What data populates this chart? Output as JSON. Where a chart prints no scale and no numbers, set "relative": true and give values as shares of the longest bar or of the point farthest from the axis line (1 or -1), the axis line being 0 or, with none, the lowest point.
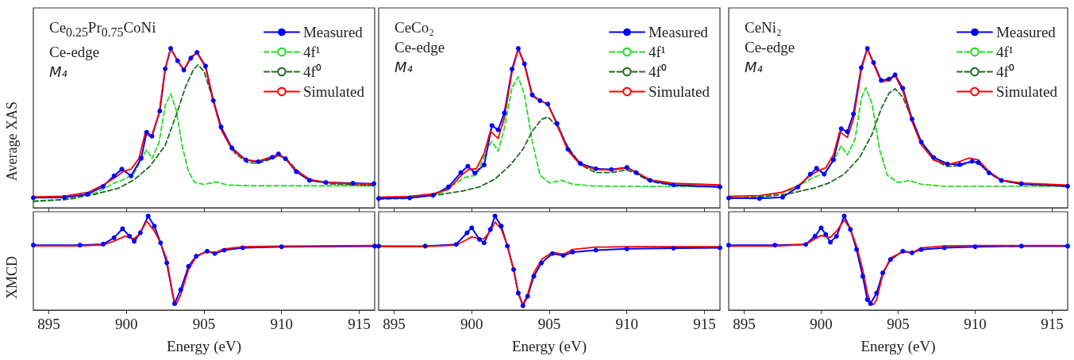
{
  "chart_data": [
    {
      "type": "line",
      "relative": true,
      "ylabel": "Average XAS",
      "xlim": [
        894,
        916
      ],
      "xticks": [
        895,
        900,
        905,
        910,
        915
      ],
      "tick_labels": false,
      "legend": "top right",
      "annotations": [
        "Ce$_{0.25}$Pr$_{0.75}$CoNi",
        "Ce-edge",
        "M₄"
      ],
      "series": [
        {
          "name": "Measured",
          "color": "#0000ff",
          "marker": "circle",
          "line_style": "solid",
          "x": [
            894,
            896,
            897.5,
            898.5,
            899.2,
            899.7,
            900.3,
            900.95,
            901.3,
            901.65,
            902.15,
            902.5,
            902.85,
            903.3,
            903.7,
            904.15,
            904.55,
            905.1,
            905.6,
            906.1,
            906.8,
            907.7,
            908.5,
            909.4,
            909.8,
            910.25,
            910.95,
            911.8,
            912.85,
            914.6,
            915.95
          ],
          "values": [
            0.063,
            0.065,
            0.085,
            0.134,
            0.2,
            0.242,
            0.2,
            0.31,
            0.474,
            0.449,
            0.607,
            0.872,
            1.0,
            0.922,
            0.864,
            0.939,
            0.975,
            0.889,
            0.673,
            0.507,
            0.375,
            0.3,
            0.289,
            0.317,
            0.338,
            0.308,
            0.226,
            0.172,
            0.159,
            0.154,
            0.151
          ]
        },
        {
          "name": "4f¹",
          "color": "#22dd22",
          "marker": "none",
          "line_style": "dashed",
          "x": [
            894,
            896.5,
            898,
            899.3,
            899.8,
            900.5,
            901.0,
            901.3,
            901.65,
            902.1,
            902.5,
            902.85,
            903.2,
            903.6,
            904.0,
            904.4,
            905.0,
            905.8,
            906.5,
            908,
            916
          ],
          "values": [
            0.043,
            0.055,
            0.093,
            0.159,
            0.176,
            0.217,
            0.308,
            0.365,
            0.308,
            0.408,
            0.64,
            0.715,
            0.617,
            0.385,
            0.226,
            0.159,
            0.146,
            0.162,
            0.143,
            0.138,
            0.138
          ]
        },
        {
          "name": "4f⁰",
          "color": "#1e6b1e",
          "marker": "none",
          "line_style": "dashed",
          "x": [
            894,
            896,
            898,
            899.5,
            900.5,
            901.5,
            902.5,
            903.3,
            903.8,
            904.3,
            904.6,
            905.0,
            905.6,
            906.2,
            907,
            907.8,
            908.5,
            909.4,
            909.8,
            910.3,
            911,
            911.8,
            913,
            916
          ],
          "values": [
            0.04,
            0.051,
            0.085,
            0.123,
            0.176,
            0.259,
            0.391,
            0.607,
            0.756,
            0.864,
            0.897,
            0.856,
            0.673,
            0.474,
            0.342,
            0.284,
            0.279,
            0.308,
            0.328,
            0.308,
            0.234,
            0.176,
            0.151,
            0.138
          ]
        },
        {
          "name": "Simulated",
          "color": "#ff0000",
          "marker": "none",
          "line_style": "solid",
          "x": [
            894,
            896,
            897.5,
            898.5,
            899.3,
            899.8,
            900.3,
            900.8,
            901.2,
            901.6,
            902.1,
            902.5,
            902.85,
            903.3,
            903.7,
            904.15,
            904.55,
            905.1,
            905.6,
            906.1,
            906.8,
            907.7,
            908.5,
            909.4,
            909.8,
            910.25,
            910.95,
            911.8,
            912.85,
            914.6,
            915.95
          ],
          "values": [
            0.068,
            0.073,
            0.096,
            0.143,
            0.192,
            0.229,
            0.242,
            0.308,
            0.466,
            0.444,
            0.59,
            0.872,
            0.997,
            0.924,
            0.864,
            0.947,
            0.972,
            0.881,
            0.665,
            0.491,
            0.366,
            0.3,
            0.292,
            0.322,
            0.333,
            0.308,
            0.234,
            0.179,
            0.159,
            0.151,
            0.148
          ]
        }
      ]
    },
    {
      "type": "line",
      "relative": true,
      "xlim": [
        894,
        916
      ],
      "xticks": [
        895,
        900,
        905,
        910,
        915
      ],
      "tick_labels": false,
      "legend": "top right",
      "annotations": [
        "CeCo₂",
        "Ce-edge",
        "M₄"
      ],
      "series": [
        {
          "name": "Measured",
          "color": "#0000ff",
          "marker": "circle",
          "line_style": "solid",
          "x": [
            894,
            896,
            897.5,
            898.5,
            899.3,
            899.75,
            900.2,
            900.8,
            901.3,
            901.7,
            902.1,
            902.6,
            903.0,
            903.4,
            903.9,
            904.4,
            904.9,
            905.5,
            906.2,
            907,
            908,
            909,
            910,
            910.6,
            911.5,
            913,
            916
          ],
          "values": [
            0.058,
            0.062,
            0.078,
            0.131,
            0.221,
            0.261,
            0.218,
            0.269,
            0.516,
            0.489,
            0.594,
            0.87,
            1.0,
            0.903,
            0.708,
            0.672,
            0.651,
            0.529,
            0.367,
            0.278,
            0.245,
            0.24,
            0.253,
            0.221,
            0.172,
            0.143,
            0.131
          ]
        },
        {
          "name": "4f¹",
          "color": "#22dd22",
          "marker": "none",
          "line_style": "dashed",
          "x": [
            894,
            896,
            898,
            899.5,
            900.3,
            901.0,
            901.3,
            901.7,
            902.1,
            902.6,
            903.0,
            903.4,
            903.9,
            904.4,
            905,
            905.8,
            906.5,
            908,
            916
          ],
          "values": [
            0.055,
            0.058,
            0.091,
            0.188,
            0.205,
            0.367,
            0.416,
            0.354,
            0.497,
            0.756,
            0.821,
            0.708,
            0.416,
            0.205,
            0.156,
            0.172,
            0.148,
            0.136,
            0.131
          ]
        },
        {
          "name": "4f⁰",
          "color": "#1e6b1e",
          "marker": "none",
          "line_style": "dashed",
          "x": [
            894,
            896,
            898,
            899.5,
            900.5,
            901.5,
            902.5,
            903.3,
            903.9,
            904.5,
            904.9,
            905.5,
            906.2,
            907,
            908,
            909,
            910,
            910.6,
            911.5,
            913,
            916
          ],
          "values": [
            0.055,
            0.062,
            0.083,
            0.107,
            0.131,
            0.18,
            0.269,
            0.367,
            0.481,
            0.554,
            0.57,
            0.513,
            0.383,
            0.269,
            0.221,
            0.221,
            0.237,
            0.213,
            0.164,
            0.14,
            0.131
          ]
        },
        {
          "name": "Simulated",
          "color": "#ff0000",
          "marker": "none",
          "line_style": "solid",
          "x": [
            894,
            896,
            897.5,
            898.5,
            899.3,
            899.8,
            900.3,
            900.8,
            901.2,
            901.7,
            902.1,
            902.6,
            903.0,
            903.4,
            903.9,
            904.4,
            904.9,
            905.5,
            906.2,
            907,
            908,
            909,
            910,
            910.6,
            911.5,
            913,
            916
          ],
          "values": [
            0.067,
            0.071,
            0.088,
            0.115,
            0.201,
            0.24,
            0.245,
            0.343,
            0.481,
            0.435,
            0.562,
            0.854,
            0.997,
            0.894,
            0.7,
            0.672,
            0.651,
            0.521,
            0.359,
            0.269,
            0.24,
            0.237,
            0.25,
            0.224,
            0.175,
            0.153,
            0.143
          ]
        }
      ]
    },
    {
      "type": "line",
      "relative": true,
      "xlim": [
        894,
        916
      ],
      "xticks": [
        895,
        900,
        905,
        910,
        915
      ],
      "tick_labels": false,
      "legend": "top right",
      "annotations": [
        "CeNi₂",
        "Ce-edge",
        "M₄"
      ],
      "series": [
        {
          "name": "Measured",
          "color": "#0000ff",
          "marker": "circle",
          "line_style": "solid",
          "x": [
            894,
            896,
            897.5,
            898.5,
            899.3,
            899.7,
            900.2,
            900.8,
            901.3,
            901.7,
            902.1,
            902.6,
            903.0,
            903.4,
            903.9,
            904.4,
            904.8,
            905.3,
            905.9,
            906.5,
            907.3,
            908.2,
            909,
            909.8,
            910.2,
            910.9,
            911.7,
            913,
            916
          ],
          "values": [
            0.061,
            0.058,
            0.066,
            0.13,
            0.211,
            0.248,
            0.211,
            0.3,
            0.496,
            0.477,
            0.589,
            0.879,
            1.0,
            0.911,
            0.799,
            0.807,
            0.834,
            0.75,
            0.557,
            0.412,
            0.316,
            0.275,
            0.271,
            0.291,
            0.283,
            0.219,
            0.171,
            0.151,
            0.135
          ]
        },
        {
          "name": "4f¹",
          "color": "#22dd22",
          "marker": "none",
          "line_style": "dashed",
          "x": [
            894,
            896,
            898,
            899.5,
            900.3,
            901.0,
            901.3,
            901.7,
            902.2,
            902.6,
            902.9,
            903.3,
            903.8,
            904.3,
            905,
            905.7,
            906.5,
            908,
            916
          ],
          "values": [
            0.061,
            0.066,
            0.11,
            0.19,
            0.219,
            0.332,
            0.388,
            0.332,
            0.428,
            0.686,
            0.754,
            0.654,
            0.364,
            0.203,
            0.158,
            0.171,
            0.147,
            0.135,
            0.135
          ]
        },
        {
          "name": "4f⁰",
          "color": "#1e6b1e",
          "marker": "none",
          "line_style": "dashed",
          "x": [
            894,
            896,
            898,
            899.5,
            900.5,
            901.5,
            902.5,
            903.3,
            903.9,
            904.4,
            904.8,
            905.3,
            905.9,
            906.5,
            907.3,
            908.2,
            909,
            909.8,
            910.3,
            910.9,
            911.7,
            913,
            916
          ],
          "values": [
            0.058,
            0.066,
            0.09,
            0.122,
            0.155,
            0.211,
            0.316,
            0.461,
            0.622,
            0.718,
            0.747,
            0.694,
            0.557,
            0.412,
            0.3,
            0.259,
            0.264,
            0.291,
            0.28,
            0.219,
            0.171,
            0.147,
            0.135
          ]
        },
        {
          "name": "Simulated",
          "color": "#ff0000",
          "marker": "none",
          "line_style": "solid",
          "x": [
            894,
            896,
            897.5,
            898.5,
            899.3,
            899.8,
            900.3,
            900.8,
            901.2,
            901.7,
            902.1,
            902.6,
            903.0,
            903.4,
            903.9,
            904.4,
            904.8,
            905.3,
            905.9,
            906.5,
            907.3,
            908.2,
            909,
            909.6,
            910.2,
            910.9,
            911.7,
            913,
            916
          ],
          "values": [
            0.071,
            0.077,
            0.098,
            0.138,
            0.203,
            0.232,
            0.251,
            0.332,
            0.477,
            0.441,
            0.557,
            0.863,
            1.0,
            0.903,
            0.79,
            0.799,
            0.828,
            0.734,
            0.541,
            0.396,
            0.3,
            0.271,
            0.291,
            0.312,
            0.3,
            0.227,
            0.174,
            0.155,
            0.142
          ]
        }
      ]
    },
    {
      "type": "line",
      "relative": true,
      "ylabel": "XMCD",
      "xlabel": "Energy (eV)",
      "xlim": [
        894,
        916
      ],
      "xticks": [
        895,
        900,
        905,
        910,
        915
      ],
      "tick_labels": "x",
      "series": [
        {
          "color": "#0000ff",
          "marker": "circle",
          "line_style": "solid",
          "x": [
            894,
            897,
            898.5,
            899.2,
            899.75,
            900.2,
            900.5,
            900.9,
            901.4,
            901.8,
            902.2,
            902.6,
            903.1,
            903.5,
            904,
            904.5,
            905.2,
            905.7,
            906.3,
            907.5,
            910,
            916
          ],
          "values": [
            0.69,
            0.69,
            0.701,
            0.769,
            0.865,
            0.786,
            0.73,
            0.822,
            1.0,
            0.893,
            0.715,
            0.502,
            0.068,
            0.217,
            0.466,
            0.573,
            0.626,
            0.601,
            0.637,
            0.662,
            0.673,
            0.68
          ]
        },
        {
          "color": "#ff0000",
          "marker": "none",
          "line_style": "solid",
          "x": [
            894,
            897,
            898.5,
            899.2,
            899.9,
            900.5,
            900.9,
            901.3,
            901.8,
            902.2,
            902.6,
            903.0,
            903.2,
            903.5,
            904,
            904.5,
            905.2,
            905.7,
            906.3,
            907.5,
            910,
            916
          ],
          "values": [
            0.683,
            0.683,
            0.694,
            0.733,
            0.786,
            0.758,
            0.822,
            0.947,
            0.84,
            0.715,
            0.537,
            0.146,
            0.057,
            0.164,
            0.431,
            0.566,
            0.626,
            0.609,
            0.651,
            0.673,
            0.68,
            0.687
          ]
        }
      ]
    },
    {
      "type": "line",
      "relative": true,
      "xlabel": "Energy (eV)",
      "xlim": [
        894,
        916
      ],
      "xticks": [
        895,
        900,
        905,
        910,
        915
      ],
      "tick_labels": "x",
      "series": [
        {
          "color": "#0000ff",
          "marker": "circle",
          "line_style": "solid",
          "x": [
            894,
            897,
            899,
            899.7,
            900.0,
            900.5,
            900.8,
            901.2,
            901.5,
            901.9,
            902.3,
            902.7,
            903.0,
            903.3,
            903.6,
            904,
            904.5,
            905.2,
            905.9,
            906.5,
            908,
            910,
            913,
            916
          ],
          "values": [
            0.68,
            0.68,
            0.698,
            0.822,
            0.875,
            0.751,
            0.715,
            0.858,
            1.0,
            0.893,
            0.68,
            0.431,
            0.181,
            0.046,
            0.146,
            0.359,
            0.502,
            0.601,
            0.58,
            0.616,
            0.637,
            0.651,
            0.658,
            0.662
          ]
        },
        {
          "color": "#ff0000",
          "marker": "none",
          "line_style": "solid",
          "x": [
            894,
            897,
            899,
            899.7,
            900.0,
            900.5,
            900.8,
            901.2,
            901.5,
            901.9,
            902.3,
            902.7,
            903.0,
            903.3,
            903.6,
            904,
            904.5,
            905.2,
            905.9,
            906.5,
            908,
            910,
            913,
            916
          ],
          "values": [
            0.676,
            0.676,
            0.69,
            0.751,
            0.779,
            0.758,
            0.758,
            0.84,
            0.936,
            0.865,
            0.68,
            0.431,
            0.181,
            0.057,
            0.164,
            0.395,
            0.537,
            0.616,
            0.591,
            0.644,
            0.669,
            0.673,
            0.673,
            0.673
          ]
        }
      ]
    },
    {
      "type": "line",
      "relative": true,
      "xlabel": "Energy (eV)",
      "xlim": [
        894,
        916
      ],
      "xticks": [
        895,
        900,
        905,
        910,
        915
      ],
      "tick_labels": "x",
      "series": [
        {
          "color": "#0000ff",
          "marker": "circle",
          "line_style": "solid",
          "x": [
            894,
            897,
            899,
            899.6,
            900.0,
            900.3,
            900.6,
            901.0,
            901.5,
            901.9,
            902.3,
            902.7,
            903.0,
            903.2,
            903.6,
            904,
            904.5,
            905.3,
            905.9,
            906.5,
            908,
            910,
            913,
            916
          ],
          "values": [
            0.69,
            0.69,
            0.698,
            0.786,
            0.875,
            0.804,
            0.722,
            0.786,
            1.0,
            0.858,
            0.644,
            0.359,
            0.11,
            0.068,
            0.181,
            0.395,
            0.537,
            0.626,
            0.609,
            0.644,
            0.662,
            0.673,
            0.68,
            0.68
          ]
        },
        {
          "color": "#ff0000",
          "marker": "none",
          "line_style": "solid",
          "x": [
            894,
            897,
            899,
            899.6,
            900.0,
            900.3,
            900.6,
            901.0,
            901.5,
            901.9,
            902.3,
            902.7,
            903.0,
            903.2,
            903.4,
            903.6,
            904,
            904.5,
            905.3,
            905.9,
            906.5,
            908,
            910,
            916
          ],
          "values": [
            0.68,
            0.68,
            0.698,
            0.758,
            0.794,
            0.779,
            0.772,
            0.84,
            0.957,
            0.858,
            0.68,
            0.431,
            0.181,
            0.075,
            0.057,
            0.11,
            0.377,
            0.555,
            0.619,
            0.609,
            0.662,
            0.683,
            0.687,
            0.687
          ]
        }
      ]
    }
  ]
}
